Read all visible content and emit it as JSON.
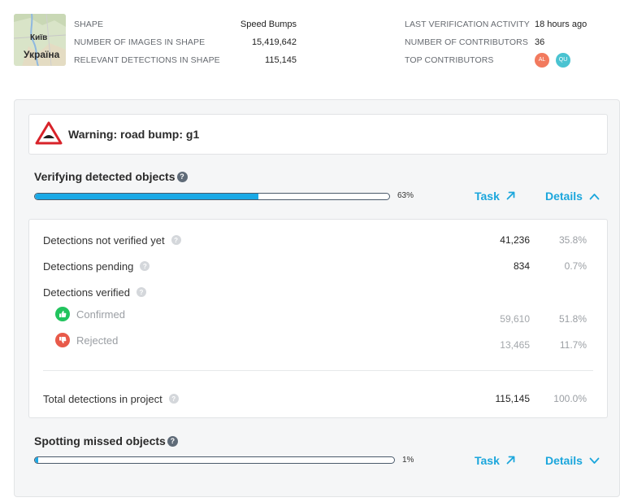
{
  "thumbnail": {
    "city_label": "Київ",
    "country_label": "Україна"
  },
  "header": {
    "shape_label": "SHAPE",
    "shape_value": "Speed Bumps",
    "images_label": "NUMBER OF IMAGES IN SHAPE",
    "images_value": "15,419,642",
    "detections_label": "RELEVANT DETECTIONS IN SHAPE",
    "detections_value": "115,145",
    "last_activity_label": "LAST VERIFICATION ACTIVITY",
    "last_activity_value": "18 hours ago",
    "contributors_label": "NUMBER OF CONTRIBUTORS",
    "contributors_value": "36",
    "top_contributors_label": "TOP CONTRIBUTORS",
    "top_contributors": [
      "AL",
      "QU"
    ]
  },
  "warning": {
    "title": "Warning: road bump: g1",
    "icon": "bump-warning-icon"
  },
  "verifying": {
    "title": "Verifying detected objects",
    "progress": 63,
    "progress_text": "63%",
    "task_label": "Task",
    "details_label": "Details",
    "rows": {
      "not_verified": {
        "label": "Detections not verified yet",
        "count": "41,236",
        "percent": "35.8%"
      },
      "pending": {
        "label": "Detections pending",
        "count": "834",
        "percent": "0.7%"
      },
      "verified": {
        "label": "Detections verified"
      },
      "confirmed": {
        "label": "Confirmed",
        "count": "59,610",
        "percent": "51.8%"
      },
      "rejected": {
        "label": "Rejected",
        "count": "13,465",
        "percent": "11.7%"
      },
      "total": {
        "label": "Total detections in project",
        "count": "115,145",
        "percent": "100.0%"
      }
    }
  },
  "spotting": {
    "title": "Spotting missed objects",
    "progress": 1,
    "progress_text": "1%",
    "task_label": "Task",
    "details_label": "Details"
  },
  "colors": {
    "accent": "#1ba6dc",
    "progress_fill": "#1aa9e6",
    "confirmed": "#22c45e",
    "rejected": "#e85a4a",
    "avatar_al": "#f27a5e",
    "avatar_qu": "#4ac3d1"
  }
}
